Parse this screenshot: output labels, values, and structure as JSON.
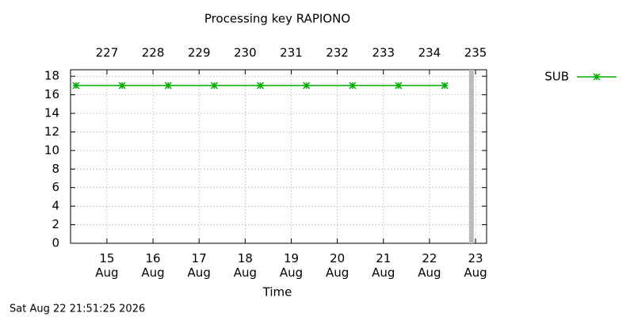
{
  "chart_data": {
    "type": "line",
    "title": "Processing key RAPIONO",
    "x_label": "Time",
    "footer": "Sat Aug 22 21:51:25 2026",
    "x": [
      14.33,
      15.33,
      16.33,
      17.33,
      18.33,
      19.33,
      20.33,
      21.33,
      22.33
    ],
    "series": [
      {
        "name": "SUB",
        "color": "#00b000",
        "values": [
          17,
          17,
          17,
          17,
          17,
          17,
          17,
          17,
          17
        ]
      }
    ],
    "xlim": [
      14.21,
      23.24
    ],
    "xticks": [
      {
        "value": 15,
        "label": "15\nAug"
      },
      {
        "value": 16,
        "label": "16\nAug"
      },
      {
        "value": 17,
        "label": "17\nAug"
      },
      {
        "value": 18,
        "label": "18\nAug"
      },
      {
        "value": 19,
        "label": "19\nAug"
      },
      {
        "value": 20,
        "label": "20\nAug"
      },
      {
        "value": 21,
        "label": "21\nAug"
      },
      {
        "value": 22,
        "label": "22\nAug"
      },
      {
        "value": 23,
        "label": "23\nAug"
      }
    ],
    "x2lim": [
      226.21,
      235.24
    ],
    "x2ticks": [
      227,
      228,
      229,
      230,
      231,
      232,
      233,
      234,
      235
    ],
    "ylim": [
      0,
      18.7
    ],
    "yticks": [
      0,
      2,
      4,
      6,
      8,
      10,
      12,
      14,
      16,
      18
    ],
    "now_marker": 22.91,
    "now_marker_color": "#bbbbbb",
    "grid": true,
    "legend": "top-right"
  }
}
